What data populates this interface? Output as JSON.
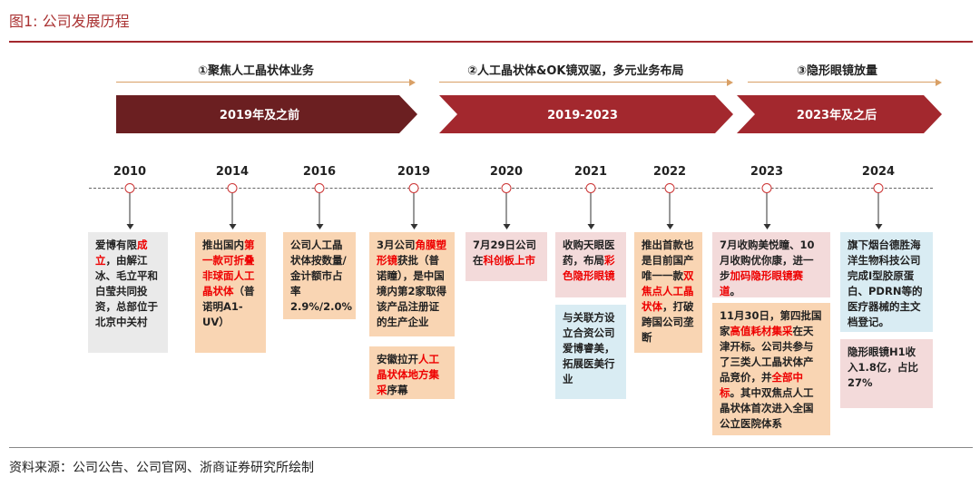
{
  "header": {
    "title": "图1:   公司发展历程"
  },
  "phases": [
    {
      "label": "①聚焦人工晶状体业务",
      "chevron": "2019年及之前"
    },
    {
      "label": "②人工晶状体&OK镜双驱，多元业务布局",
      "chevron": "2019-2023"
    },
    {
      "label": "③隐形眼镜放量",
      "chevron": "2023年及之后"
    }
  ],
  "years": [
    "2010",
    "2014",
    "2016",
    "2019",
    "2020",
    "2021",
    "2022",
    "2023",
    "2024"
  ],
  "cards": {
    "c2010": [
      "爱博有限",
      "成立",
      "，由解江冰、毛立平和白莹共同投资，总部位于北京中关村"
    ],
    "c2014": [
      "推出国内",
      "第一款可折叠非球面人工晶状体",
      "（普诺明A1-UV）"
    ],
    "c2016": [
      "公司人工晶状体按数量/金计额市占率2.9%/2.0%"
    ],
    "c2019a": [
      "3月公司",
      "角膜塑形镜",
      "获批（普诺瞳），是中国境内第2家取得该产品注册证的生产企业"
    ],
    "c2019b": [
      "安徽拉开",
      "人工晶状体地方集采",
      "序幕"
    ],
    "c2020": [
      "7月29日公司在",
      "科创板上市"
    ],
    "c2021a": [
      "收购天眼医药，布局",
      "彩色隐形眼镜"
    ],
    "c2021b": [
      "与关联方设立合资公司爱博睿美，拓展医美行业"
    ],
    "c2022": [
      "推出首款也是目前国产唯一一款",
      "双焦点人工晶状体",
      "，打破跨国公司垄断"
    ],
    "c2023a": [
      "7月收购美悦瞳、10月收购优你康，进一步",
      "加码隐形眼镜赛道",
      "。"
    ],
    "c2023b": [
      "11月30日，第四批国家",
      "高值耗材集采",
      "在天津开标。公司共参与了三类人工晶状体产品竞价，并",
      "全部中标",
      "。其中双焦点人工晶状体首次进入全国公立医院体系"
    ],
    "c2024a": [
      "旗下烟台德胜海洋生物科技公司完成I型胶原蛋白、PDRN等的医疗器械的主文档登记。"
    ],
    "c2024b": [
      "隐形眼镜H1收入1.8亿，占比27%"
    ]
  },
  "footer": {
    "source": "资料来源：公司公告、公司官网、浙商证券研究所绘制"
  },
  "colors": {
    "chevron_dark": "#6b1f21",
    "chevron_mid": "#a3282e",
    "accent_red": "#e00000"
  }
}
